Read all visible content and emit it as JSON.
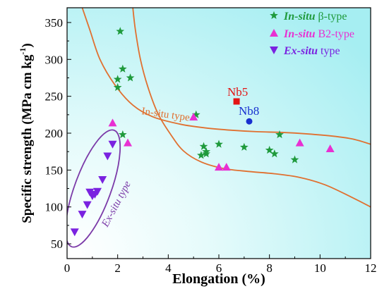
{
  "chart_data": {
    "type": "scatter",
    "xlabel": "Elongation (%)",
    "ylabel_main": "Specific strength (MPa cm kg",
    "ylabel_sup": "-1",
    "ylabel_close": ")",
    "xlim": [
      0,
      12
    ],
    "ylim": [
      30,
      370
    ],
    "xticks": [
      "0",
      "2",
      "4",
      "6",
      "8",
      "10",
      "12"
    ],
    "yticks": [
      "50",
      "100",
      "150",
      "200",
      "250",
      "300",
      "350"
    ],
    "legend_position": "top-right",
    "colors": {
      "beta": "#1f9a3c",
      "b2": "#e830d2",
      "exsitu": "#7a22e0",
      "nb5": "#e31414",
      "nb8": "#1830d0",
      "curve": "#e07030",
      "ellipse": "#7b3aa8",
      "bg_edge": "#a6eef2"
    },
    "legend": [
      {
        "italic": "In-situ",
        "rest": " β-type"
      },
      {
        "italic": "In-situ",
        "rest": " B2-type"
      },
      {
        "italic": "Ex-situ",
        "rest": " type"
      }
    ],
    "series": [
      {
        "name": "In-situ β-type",
        "marker": "star",
        "points": [
          [
            2.1,
            338
          ],
          [
            2.2,
            287
          ],
          [
            2.5,
            275
          ],
          [
            2.0,
            273
          ],
          [
            2.0,
            262
          ],
          [
            2.2,
            198
          ],
          [
            5.1,
            225
          ],
          [
            6.0,
            185
          ],
          [
            5.3,
            170
          ],
          [
            5.4,
            182
          ],
          [
            5.5,
            175
          ],
          [
            5.5,
            172
          ],
          [
            7.0,
            181
          ],
          [
            8.0,
            177
          ],
          [
            8.2,
            172
          ],
          [
            8.4,
            198
          ],
          [
            9.0,
            164
          ]
        ]
      },
      {
        "name": "In-situ B2-type",
        "marker": "triangle",
        "points": [
          [
            1.8,
            214
          ],
          [
            2.4,
            187
          ],
          [
            5.0,
            222
          ],
          [
            6.0,
            154
          ],
          [
            6.3,
            154
          ],
          [
            9.2,
            187
          ],
          [
            10.4,
            179
          ]
        ]
      },
      {
        "name": "Ex-situ type",
        "marker": "triangle-down",
        "points": [
          [
            0.3,
            66
          ],
          [
            0.6,
            90
          ],
          [
            0.8,
            103
          ],
          [
            0.9,
            120
          ],
          [
            1.0,
            115
          ],
          [
            1.2,
            121
          ],
          [
            1.4,
            137
          ],
          [
            1.6,
            169
          ],
          [
            1.8,
            185
          ],
          [
            1.1,
            117
          ]
        ]
      }
    ],
    "highlights": [
      {
        "label": "Nb5",
        "x": 6.7,
        "y": 243,
        "marker": "square"
      },
      {
        "label": "Nb8",
        "x": 7.2,
        "y": 216,
        "marker": "circle"
      }
    ],
    "annotations": {
      "insitu": "In-situ type",
      "exsitu": "Ex-situ type"
    },
    "upper_curve": [
      [
        0.6,
        370
      ],
      [
        0.9,
        340
      ],
      [
        1.3,
        300
      ],
      [
        1.9,
        265
      ],
      [
        2.6,
        238
      ],
      [
        3.4,
        222
      ],
      [
        4.5,
        212
      ],
      [
        5.5,
        207
      ],
      [
        6.5,
        204
      ],
      [
        7.5,
        202
      ],
      [
        8.5,
        201
      ],
      [
        9.5,
        199
      ],
      [
        10.5,
        196
      ],
      [
        11.3,
        192
      ],
      [
        12,
        185
      ]
    ],
    "lower_curve": [
      [
        2.6,
        370
      ],
      [
        2.7,
        340
      ],
      [
        2.9,
        300
      ],
      [
        3.2,
        262
      ],
      [
        3.6,
        226
      ],
      [
        4.1,
        198
      ],
      [
        4.6,
        176
      ],
      [
        5.3,
        161
      ],
      [
        6.2,
        152
      ],
      [
        7.2,
        148
      ],
      [
        8.2,
        145
      ],
      [
        9.2,
        140
      ],
      [
        10.2,
        130
      ],
      [
        11.2,
        114
      ],
      [
        12,
        100
      ]
    ],
    "ellipse": {
      "cx": 1.02,
      "cy": 125,
      "rx_data": 0.72,
      "ry_data": 84,
      "rotate": 20
    }
  }
}
